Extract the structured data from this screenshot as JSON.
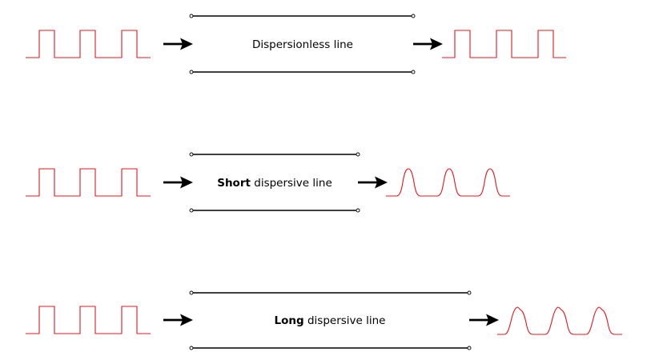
{
  "rows": [
    {
      "label_bold": "",
      "label_rest": "Dispersionless line",
      "output_shape": "square"
    },
    {
      "label_bold": "Short",
      "label_rest": " dispersive line",
      "output_shape": "rounded"
    },
    {
      "label_bold": "Long",
      "label_rest": " dispersive line",
      "output_shape": "overshoot"
    }
  ],
  "colors": {
    "signal": "#e0191f",
    "line": "#000000"
  }
}
